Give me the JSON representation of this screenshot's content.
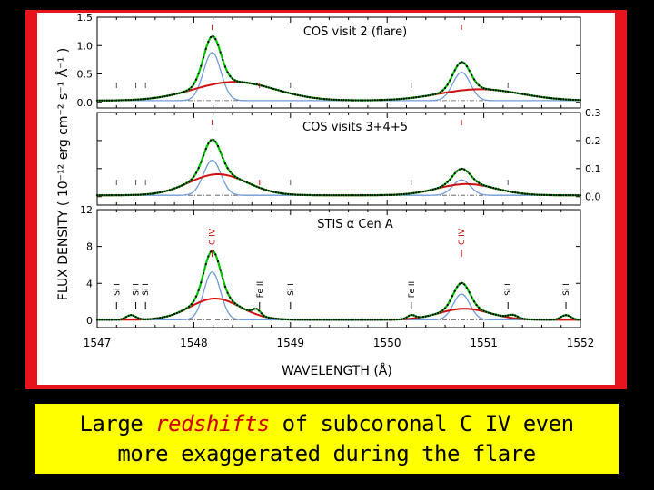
{
  "caption": {
    "line1_pre": "Large ",
    "line1_highlight": "redshifts",
    "line1_post": " of subcoronal C IV even",
    "line2": "more exaggerated during the flare"
  },
  "colors": {
    "frame": "#e8141b",
    "caption_bg": "#ffff00",
    "total_fit": "#00c000",
    "narrow_component": "#6f9bd8",
    "broad_component": "#d01010",
    "line_marker_label": "#cc0000"
  },
  "chart_data": {
    "type": "line",
    "xlabel": "WAVELENGTH (Å)",
    "ylabel": "FLUX DENSITY ( 10⁻¹² erg cm⁻² s⁻¹ Å⁻¹ )",
    "xlim": [
      1547,
      1552
    ],
    "x_ticks": [
      "1547",
      "1548",
      "1549",
      "1550",
      "1551",
      "1552"
    ],
    "panels": [
      {
        "title": "COS visit 2 (flare)",
        "y_axis_side": "left",
        "ylim": [
          -0.1,
          1.5
        ],
        "y_ticks": [
          "0.0",
          "0.5",
          "1.0",
          "1.5"
        ],
        "lines": [
          {
            "center": 1548.19,
            "narrow_amp": 0.85,
            "narrow_width": 0.09,
            "broad_center": 1548.42,
            "broad_amp": 0.33,
            "broad_width": 0.42
          },
          {
            "center": 1550.77,
            "narrow_amp": 0.5,
            "narrow_width": 0.09,
            "broad_center": 1550.96,
            "broad_amp": 0.2,
            "broad_width": 0.42
          }
        ],
        "baseline": 0.03,
        "marker_wavelengths": [
          1547.2,
          1547.4,
          1547.5,
          1548.19,
          1548.68,
          1549.0,
          1550.25,
          1550.77,
          1551.25
        ]
      },
      {
        "title": "COS visits 3+4+5",
        "y_axis_side": "right",
        "ylim": [
          -0.03,
          0.3
        ],
        "y_ticks": [
          "0.0",
          "0.1",
          "0.2",
          "0.3"
        ],
        "lines": [
          {
            "center": 1548.19,
            "narrow_amp": 0.125,
            "narrow_width": 0.09,
            "broad_center": 1548.25,
            "broad_amp": 0.075,
            "broad_width": 0.3
          },
          {
            "center": 1550.77,
            "narrow_amp": 0.055,
            "narrow_width": 0.09,
            "broad_center": 1550.82,
            "broad_amp": 0.04,
            "broad_width": 0.3
          }
        ],
        "baseline": 0.005,
        "marker_wavelengths": [
          1547.2,
          1547.4,
          1547.5,
          1548.19,
          1548.68,
          1549.0,
          1550.25,
          1550.77,
          1551.25
        ]
      },
      {
        "title": "STIS α Cen A",
        "y_axis_side": "left",
        "ylim": [
          -0.8,
          12
        ],
        "y_ticks": [
          "0",
          "4",
          "8",
          "12"
        ],
        "lines": [
          {
            "center": 1548.19,
            "narrow_amp": 5.2,
            "narrow_width": 0.085,
            "broad_center": 1548.22,
            "broad_amp": 2.3,
            "broad_width": 0.26
          },
          {
            "center": 1550.77,
            "narrow_amp": 2.8,
            "narrow_width": 0.085,
            "broad_center": 1550.8,
            "broad_amp": 1.2,
            "broad_width": 0.26
          }
        ],
        "extra_features": [
          {
            "center": 1547.35,
            "amp": 0.5,
            "width": 0.05
          },
          {
            "center": 1548.65,
            "amp": 0.6,
            "width": 0.04
          },
          {
            "center": 1550.25,
            "amp": 0.4,
            "width": 0.04
          },
          {
            "center": 1551.3,
            "amp": 0.35,
            "width": 0.05
          },
          {
            "center": 1551.85,
            "amp": 0.5,
            "width": 0.05
          }
        ],
        "baseline": 0.05,
        "line_labels": [
          {
            "text": "Si I",
            "wavelength": 1547.2,
            "color": "#000000"
          },
          {
            "text": "Si I",
            "wavelength": 1547.4,
            "color": "#000000"
          },
          {
            "text": "Si I",
            "wavelength": 1547.5,
            "color": "#000000"
          },
          {
            "text": "C IV",
            "wavelength": 1548.19,
            "color": "#cc0000"
          },
          {
            "text": "Fe II",
            "wavelength": 1548.68,
            "color": "#000000"
          },
          {
            "text": "Si I",
            "wavelength": 1549.0,
            "color": "#000000"
          },
          {
            "text": "Fe II",
            "wavelength": 1550.25,
            "color": "#000000"
          },
          {
            "text": "C IV",
            "wavelength": 1550.77,
            "color": "#cc0000"
          },
          {
            "text": "Si I",
            "wavelength": 1551.25,
            "color": "#000000"
          },
          {
            "text": "Si I",
            "wavelength": 1551.85,
            "color": "#000000"
          }
        ]
      }
    ]
  }
}
